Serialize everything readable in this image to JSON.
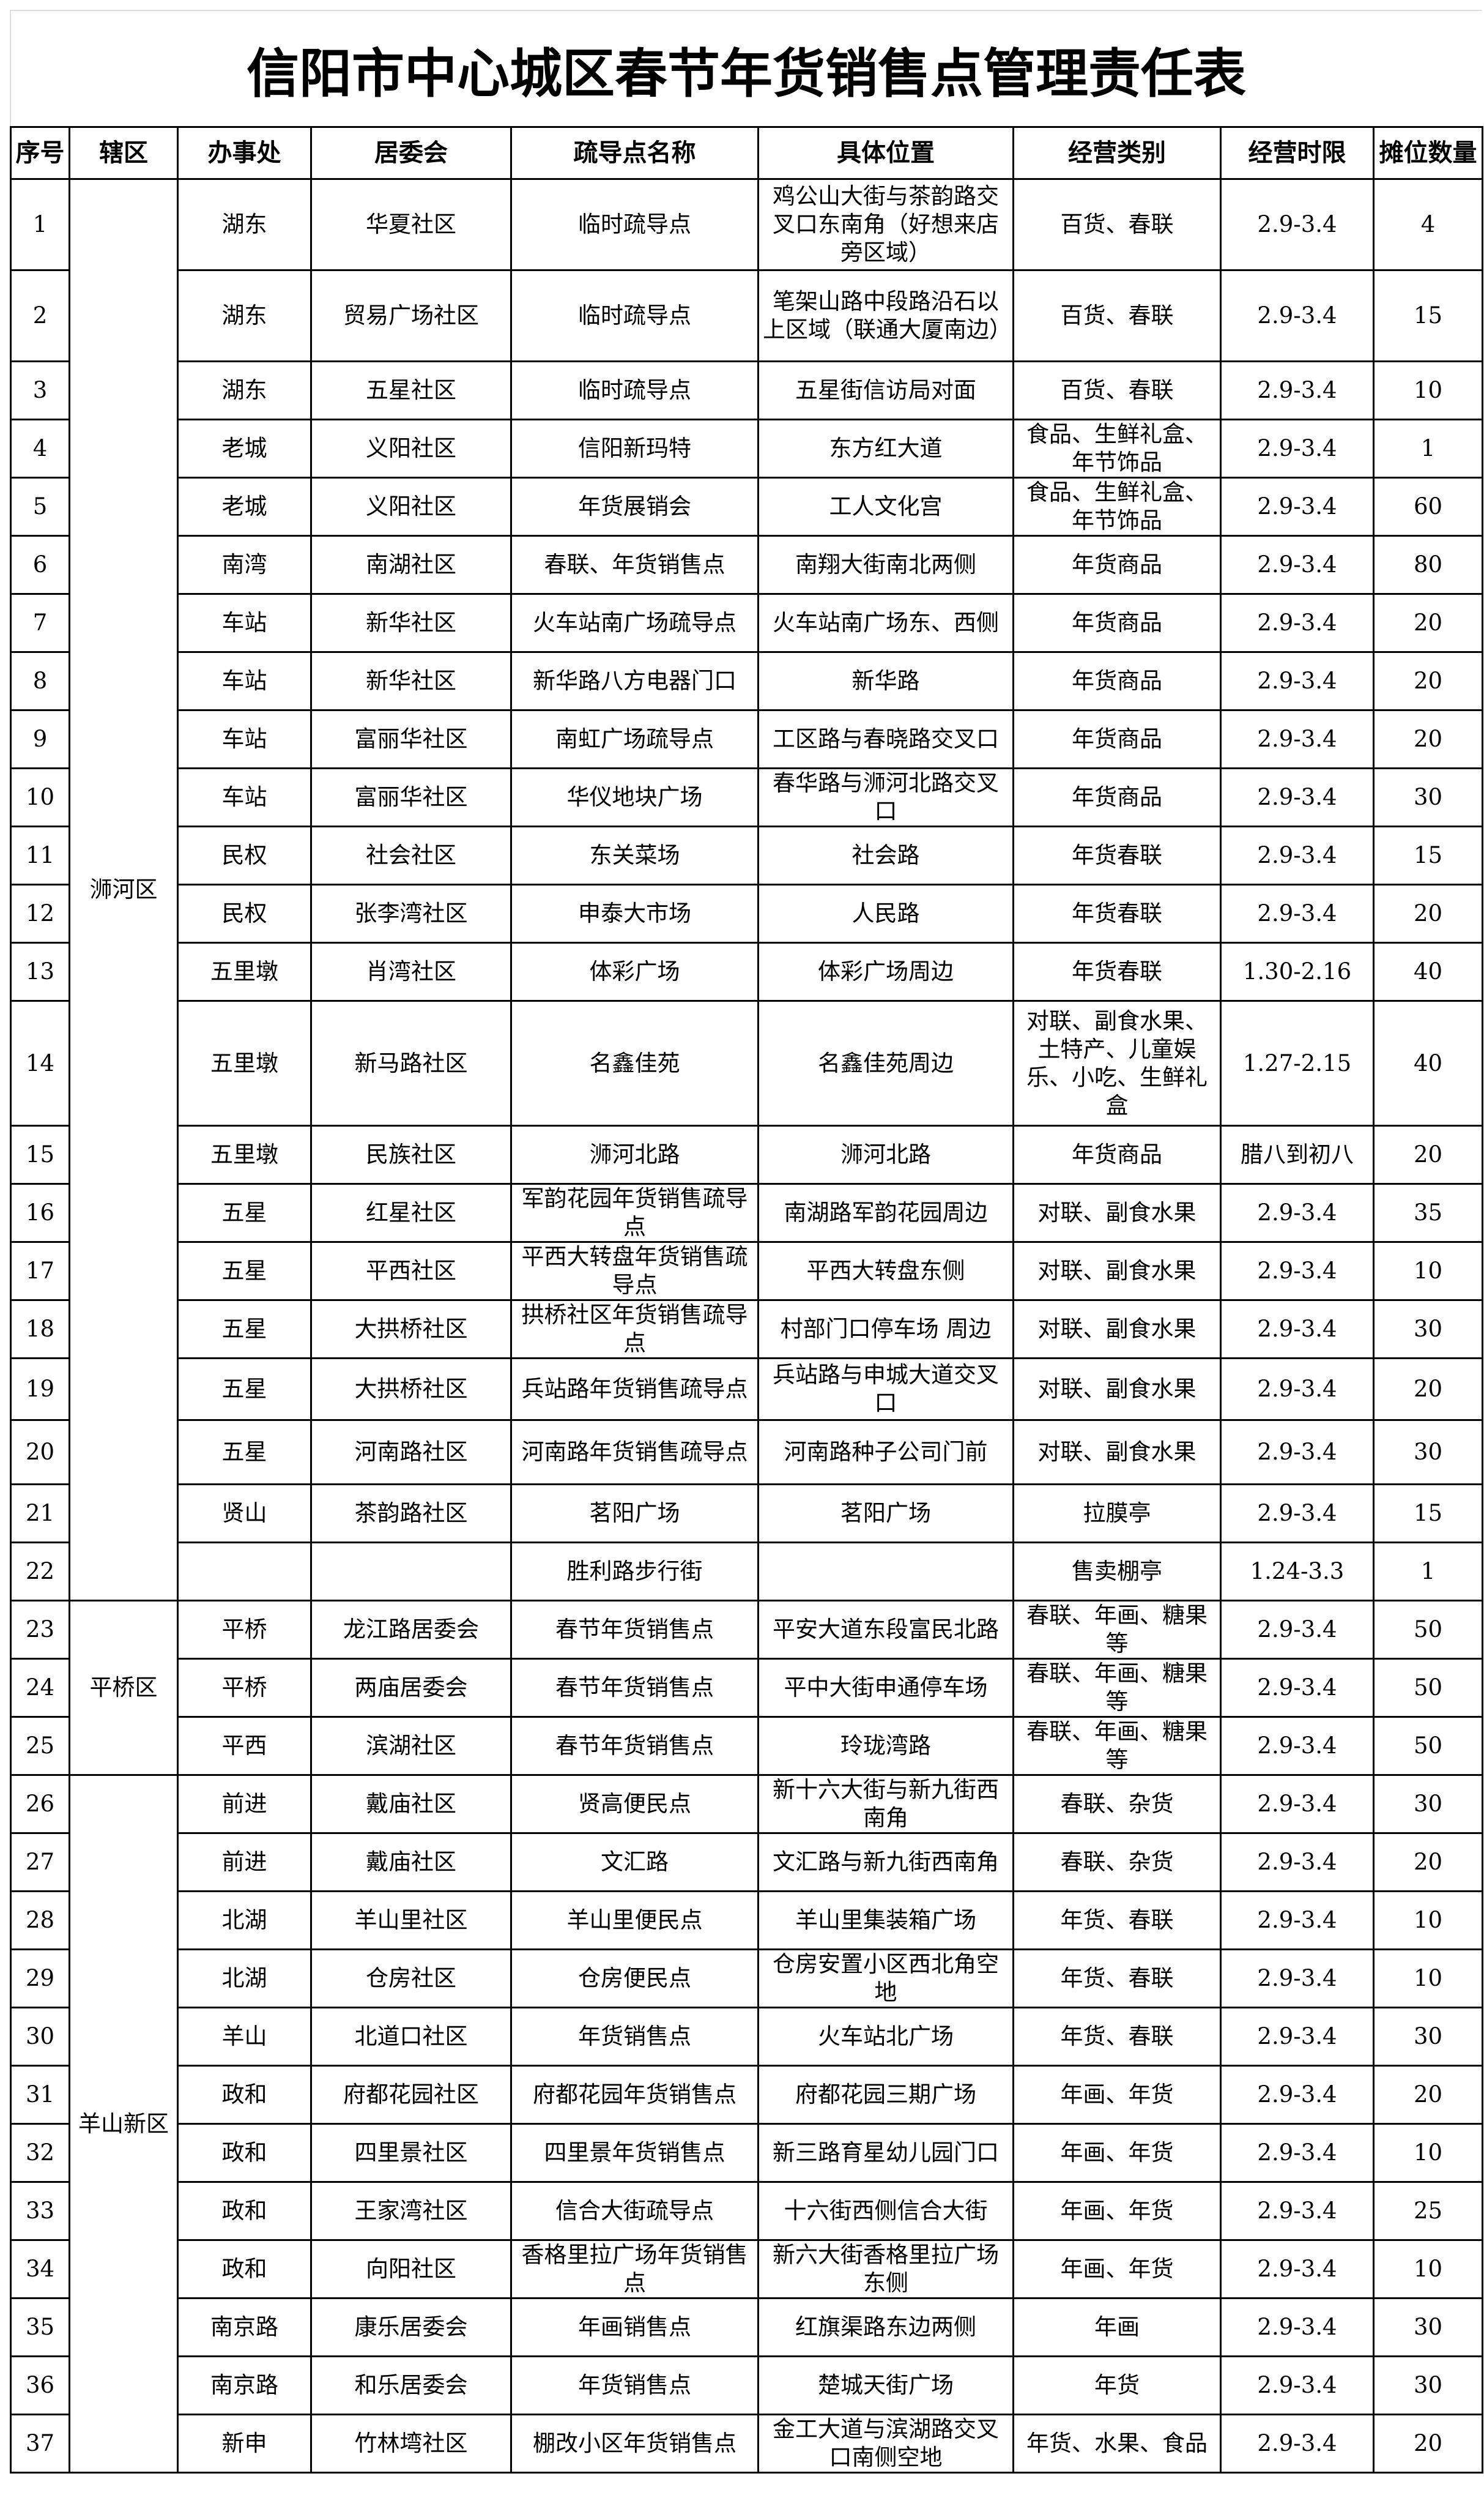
{
  "title": "信阳市中心城区春节年货销售点管理责任表",
  "headers": [
    "序号",
    "辖区",
    "办事处",
    "居委会",
    "疏导点名称",
    "具体位置",
    "经营类别",
    "经营时限",
    "摊位数量"
  ],
  "districts": [
    {
      "name": "浉河区",
      "from": 1,
      "to": 22
    },
    {
      "name": "平桥区",
      "from": 23,
      "to": 25
    },
    {
      "name": "羊山新区",
      "from": 26,
      "to": 37
    }
  ],
  "rows": [
    [
      "1",
      "湖东",
      "华夏社区",
      "临时疏导点",
      "鸡公山大街与茶韵路交叉口东南角（好想来店旁区域）",
      "百货、春联",
      "2.9-3.4",
      "4"
    ],
    [
      "2",
      "湖东",
      "贸易广场社区",
      "临时疏导点",
      "笔架山路中段路沿石以上区域（联通大厦南边）",
      "百货、春联",
      "2.9-3.4",
      "15"
    ],
    [
      "3",
      "湖东",
      "五星社区",
      "临时疏导点",
      "五星街信访局对面",
      "百货、春联",
      "2.9-3.4",
      "10"
    ],
    [
      "4",
      "老城",
      "义阳社区",
      "信阳新玛特",
      "东方红大道",
      "食品、生鲜礼盒、年节饰品",
      "2.9-3.4",
      "1"
    ],
    [
      "5",
      "老城",
      "义阳社区",
      "年货展销会",
      "工人文化宫",
      "食品、生鲜礼盒、年节饰品",
      "2.9-3.4",
      "60"
    ],
    [
      "6",
      "南湾",
      "南湖社区",
      "春联、年货销售点",
      "南翔大街南北两侧",
      "年货商品",
      "2.9-3.4",
      "80"
    ],
    [
      "7",
      "车站",
      "新华社区",
      "火车站南广场疏导点",
      "火车站南广场东、西侧",
      "年货商品",
      "2.9-3.4",
      "20"
    ],
    [
      "8",
      "车站",
      "新华社区",
      "新华路八方电器门口",
      "新华路",
      "年货商品",
      "2.9-3.4",
      "20"
    ],
    [
      "9",
      "车站",
      "富丽华社区",
      "南虹广场疏导点",
      "工区路与春晓路交叉口",
      "年货商品",
      "2.9-3.4",
      "20"
    ],
    [
      "10",
      "车站",
      "富丽华社区",
      "华仪地块广场",
      "春华路与浉河北路交叉口",
      "年货商品",
      "2.9-3.4",
      "30"
    ],
    [
      "11",
      "民权",
      "社会社区",
      "东关菜场",
      "社会路",
      "年货春联",
      "2.9-3.4",
      "15"
    ],
    [
      "12",
      "民权",
      "张李湾社区",
      "申泰大市场",
      "人民路",
      "年货春联",
      "2.9-3.4",
      "20"
    ],
    [
      "13",
      "五里墩",
      "肖湾社区",
      "体彩广场",
      "体彩广场周边",
      "年货春联",
      "1.30-2.16",
      "40"
    ],
    [
      "14",
      "五里墩",
      "新马路社区",
      "名鑫佳苑",
      "名鑫佳苑周边",
      "对联、副食水果、土特产、儿童娱乐、小吃、生鲜礼盒",
      "1.27-2.15",
      "40"
    ],
    [
      "15",
      "五里墩",
      "民族社区",
      "浉河北路",
      "浉河北路",
      "年货商品",
      "腊八到初八",
      "20"
    ],
    [
      "16",
      "五星",
      "红星社区",
      "军韵花园年货销售疏导点",
      "南湖路军韵花园周边",
      "对联、副食水果",
      "2.9-3.4",
      "35"
    ],
    [
      "17",
      "五星",
      "平西社区",
      "平西大转盘年货销售疏导点",
      "平西大转盘东侧",
      "对联、副食水果",
      "2.9-3.4",
      "10"
    ],
    [
      "18",
      "五星",
      "大拱桥社区",
      "拱桥社区年货销售疏导点",
      "村部门口停车场 周边",
      "对联、副食水果",
      "2.9-3.4",
      "30"
    ],
    [
      "19",
      "五星",
      "大拱桥社区",
      "兵站路年货销售疏导点",
      "兵站路与申城大道交叉口",
      "对联、副食水果",
      "2.9-3.4",
      "20"
    ],
    [
      "20",
      "五星",
      "河南路社区",
      "河南路年货销售疏导点",
      "河南路种子公司门前",
      "对联、副食水果",
      "2.9-3.4",
      "30"
    ],
    [
      "21",
      "贤山",
      "茶韵路社区",
      "茗阳广场",
      "茗阳广场",
      "拉膜亭",
      "2.9-3.4",
      "15"
    ],
    [
      "22",
      "",
      "",
      "胜利路步行街",
      "",
      "售卖棚亭",
      "1.24-3.3",
      "1"
    ],
    [
      "23",
      "平桥",
      "龙江路居委会",
      "春节年货销售点",
      "平安大道东段富民北路",
      "春联、年画、糖果等",
      "2.9-3.4",
      "50"
    ],
    [
      "24",
      "平桥",
      "两庙居委会",
      "春节年货销售点",
      "平中大街申通停车场",
      "春联、年画、糖果等",
      "2.9-3.4",
      "50"
    ],
    [
      "25",
      "平西",
      "滨湖社区",
      "春节年货销售点",
      "玲珑湾路",
      "春联、年画、糖果等",
      "2.9-3.4",
      "50"
    ],
    [
      "26",
      "前进",
      "戴庙社区",
      "贤高便民点",
      "新十六大街与新九街西南角",
      "春联、杂货",
      "2.9-3.4",
      "30"
    ],
    [
      "27",
      "前进",
      "戴庙社区",
      "文汇路",
      "文汇路与新九街西南角",
      "春联、杂货",
      "2.9-3.4",
      "20"
    ],
    [
      "28",
      "北湖",
      "羊山里社区",
      "羊山里便民点",
      "羊山里集装箱广场",
      "年货、春联",
      "2.9-3.4",
      "10"
    ],
    [
      "29",
      "北湖",
      "仓房社区",
      "仓房便民点",
      "仓房安置小区西北角空地",
      "年货、春联",
      "2.9-3.4",
      "10"
    ],
    [
      "30",
      "羊山",
      "北道口社区",
      "年货销售点",
      "火车站北广场",
      "年货、春联",
      "2.9-3.4",
      "30"
    ],
    [
      "31",
      "政和",
      "府都花园社区",
      "府都花园年货销售点",
      "府都花园三期广场",
      "年画、年货",
      "2.9-3.4",
      "20"
    ],
    [
      "32",
      "政和",
      "四里景社区",
      "四里景年货销售点",
      "新三路育星幼儿园门口",
      "年画、年货",
      "2.9-3.4",
      "10"
    ],
    [
      "33",
      "政和",
      "王家湾社区",
      "信合大街疏导点",
      "十六街西侧信合大街",
      "年画、年货",
      "2.9-3.4",
      "25"
    ],
    [
      "34",
      "政和",
      "向阳社区",
      "香格里拉广场年货销售点",
      "新六大街香格里拉广场东侧",
      "年画、年货",
      "2.9-3.4",
      "10"
    ],
    [
      "35",
      "南京路",
      "康乐居委会",
      "年画销售点",
      "红旗渠路东边两侧",
      "年画",
      "2.9-3.4",
      "30"
    ],
    [
      "36",
      "南京路",
      "和乐居委会",
      "年货销售点",
      "楚城天街广场",
      "年货",
      "2.9-3.4",
      "30"
    ],
    [
      "37",
      "新申",
      "竹林塆社区",
      "棚改小区年货销售点",
      "金工大道与滨湖路交叉口南侧空地",
      "年货、水果、食品",
      "2.9-3.4",
      "20"
    ]
  ]
}
